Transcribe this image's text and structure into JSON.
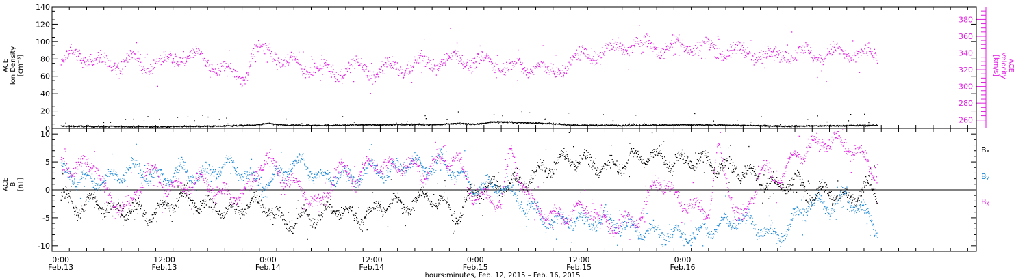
{
  "chart_data": [
    {
      "type": "scatter",
      "panel": "top",
      "left_ylabel": [
        "ACE",
        "Ion Density",
        "[cm⁻³]"
      ],
      "right_ylabel": [
        "ACE",
        "Velocity",
        "[km/s]"
      ],
      "ylim_left": [
        0,
        140
      ],
      "ylim_right": [
        250,
        395
      ],
      "left_ticks": [
        "0",
        "20",
        "40",
        "60",
        "80",
        "100",
        "120",
        "140"
      ],
      "right_ticks": [
        "260",
        "280",
        "300",
        "320",
        "340",
        "360",
        "380"
      ],
      "series": [
        {
          "name": "",
          "axis": "left",
          "color": "#000000",
          "shape": "density",
          "anchors": [
            [
              0,
              3
            ],
            [
              6,
              2.5
            ],
            [
              12,
              2.5
            ],
            [
              18,
              3
            ],
            [
              22,
              4
            ],
            [
              24,
              6
            ],
            [
              26,
              4
            ],
            [
              32,
              4
            ],
            [
              36,
              4.5
            ],
            [
              40,
              5
            ],
            [
              44,
              5
            ],
            [
              46,
              6
            ],
            [
              48,
              5
            ],
            [
              50,
              8
            ],
            [
              54,
              7
            ],
            [
              60,
              4
            ],
            [
              66,
              4
            ],
            [
              72,
              4.5
            ],
            [
              78,
              4
            ],
            [
              84,
              3
            ],
            [
              90,
              3.5
            ],
            [
              94.5,
              4
            ]
          ]
        },
        {
          "name": "",
          "axis": "right",
          "color": "#e01ee0",
          "shape": "velocity",
          "anchors": [
            [
              0,
              330
            ],
            [
              2,
              340
            ],
            [
              4,
              330
            ],
            [
              6,
              328
            ],
            [
              8,
              332
            ],
            [
              10,
              325
            ],
            [
              12,
              330
            ],
            [
              14,
              338
            ],
            [
              16,
              335
            ],
            [
              18,
              325
            ],
            [
              20,
              315
            ],
            [
              21,
              310
            ],
            [
              22.5,
              342
            ],
            [
              24,
              345
            ],
            [
              26,
              330
            ],
            [
              28,
              325
            ],
            [
              30,
              320
            ],
            [
              32,
              318
            ],
            [
              34,
              325
            ],
            [
              36,
              318
            ],
            [
              38,
              320
            ],
            [
              40,
              325
            ],
            [
              42,
              328
            ],
            [
              44,
              330
            ],
            [
              46,
              335
            ],
            [
              48,
              330
            ],
            [
              50,
              328
            ],
            [
              52,
              325
            ],
            [
              54,
              320
            ],
            [
              55,
              330
            ],
            [
              56,
              318
            ],
            [
              57,
              312
            ],
            [
              58,
              325
            ],
            [
              60,
              335
            ],
            [
              62,
              340
            ],
            [
              64,
              345
            ],
            [
              66,
              350
            ],
            [
              68,
              350
            ],
            [
              70,
              346
            ],
            [
              72,
              350
            ],
            [
              74,
              348
            ],
            [
              76,
              345
            ],
            [
              78,
              342
            ],
            [
              80,
              340
            ],
            [
              82,
              338
            ],
            [
              84,
              340
            ],
            [
              86,
              340
            ],
            [
              88,
              338
            ],
            [
              90,
              340
            ],
            [
              92,
              340
            ],
            [
              94.5,
              336
            ]
          ]
        }
      ]
    },
    {
      "type": "scatter",
      "panel": "bottom",
      "left_ylabel": [
        "ACE",
        "B",
        "[nT]"
      ],
      "ylim": [
        -11,
        11
      ],
      "ticks": [
        "-10",
        "-5",
        "0",
        "5",
        "10"
      ],
      "legend_placement": "right",
      "series": [
        {
          "name": "Bₓ",
          "color": "#000000",
          "anchors": [
            [
              0,
              -1
            ],
            [
              2,
              -3
            ],
            [
              4,
              -2
            ],
            [
              6,
              -4
            ],
            [
              8,
              -3
            ],
            [
              10,
              -4.5
            ],
            [
              12,
              -3
            ],
            [
              14,
              -1
            ],
            [
              16,
              -2.5
            ],
            [
              18,
              -3
            ],
            [
              20,
              -4
            ],
            [
              22,
              -2
            ],
            [
              24,
              -3
            ],
            [
              26,
              -6
            ],
            [
              28,
              -5
            ],
            [
              30,
              -4.5
            ],
            [
              32,
              -3
            ],
            [
              34,
              -5
            ],
            [
              36,
              -4
            ],
            [
              38,
              -2
            ],
            [
              40,
              -3
            ],
            [
              42,
              -1
            ],
            [
              44,
              -2
            ],
            [
              46,
              -5
            ],
            [
              47.5,
              -0.5
            ],
            [
              49,
              0.3
            ],
            [
              51,
              0.8
            ],
            [
              53,
              1
            ],
            [
              55,
              3
            ],
            [
              57,
              4.5
            ],
            [
              59,
              6
            ],
            [
              61,
              5
            ],
            [
              63,
              4
            ],
            [
              65,
              5
            ],
            [
              67,
              6
            ],
            [
              69,
              6
            ],
            [
              71,
              5
            ],
            [
              73,
              5.5
            ],
            [
              75,
              5
            ],
            [
              77,
              4
            ],
            [
              79,
              3.5
            ],
            [
              81,
              2
            ],
            [
              83,
              0.5
            ],
            [
              85,
              2
            ],
            [
              87,
              -1
            ],
            [
              89,
              0
            ],
            [
              91,
              -2
            ],
            [
              93,
              1
            ],
            [
              94.5,
              -1
            ]
          ]
        },
        {
          "name": "Bᵧ",
          "color": "#1c87d6",
          "anchors": [
            [
              0,
              3.5
            ],
            [
              2,
              2
            ],
            [
              4,
              1.5
            ],
            [
              6,
              2
            ],
            [
              8,
              4
            ],
            [
              10,
              3
            ],
            [
              12,
              2
            ],
            [
              14,
              3.5
            ],
            [
              16,
              2.5
            ],
            [
              18,
              4
            ],
            [
              20,
              4.5
            ],
            [
              22,
              2
            ],
            [
              24,
              1
            ],
            [
              26,
              4
            ],
            [
              28,
              5
            ],
            [
              30,
              2
            ],
            [
              32,
              3
            ],
            [
              34,
              2
            ],
            [
              36,
              4
            ],
            [
              38,
              3
            ],
            [
              40,
              5
            ],
            [
              42,
              4
            ],
            [
              44,
              5
            ],
            [
              46,
              3
            ],
            [
              47.5,
              0.5
            ],
            [
              49,
              0.5
            ],
            [
              51,
              1
            ],
            [
              53,
              -2
            ],
            [
              55,
              -4
            ],
            [
              57,
              -6
            ],
            [
              59,
              -5
            ],
            [
              61,
              -6
            ],
            [
              63,
              -5
            ],
            [
              65,
              -6.5
            ],
            [
              67,
              -7
            ],
            [
              69,
              -7.5
            ],
            [
              71,
              -8
            ],
            [
              73,
              -8
            ],
            [
              75,
              -7
            ],
            [
              77,
              -6
            ],
            [
              79,
              -5
            ],
            [
              81,
              -7
            ],
            [
              83,
              -8.5
            ],
            [
              85,
              -5
            ],
            [
              87,
              -2
            ],
            [
              89,
              -3
            ],
            [
              91,
              -1
            ],
            [
              93,
              -4
            ],
            [
              94.5,
              -7
            ]
          ]
        },
        {
          "name": "Bᵪ",
          "color": "#e01ee0",
          "anchors": [
            [
              0,
              4.5
            ],
            [
              2,
              4
            ],
            [
              4,
              5
            ],
            [
              5,
              0
            ],
            [
              6,
              -2
            ],
            [
              8,
              -3
            ],
            [
              10,
              4
            ],
            [
              12,
              1
            ],
            [
              14,
              0
            ],
            [
              16,
              2
            ],
            [
              18,
              0
            ],
            [
              20,
              -1
            ],
            [
              22,
              0
            ],
            [
              23,
              5
            ],
            [
              24,
              5.5
            ],
            [
              26,
              2
            ],
            [
              28,
              0
            ],
            [
              30,
              -3
            ],
            [
              32,
              4
            ],
            [
              34,
              2
            ],
            [
              36,
              5
            ],
            [
              38,
              4
            ],
            [
              40,
              5
            ],
            [
              42,
              3
            ],
            [
              44,
              5.5
            ],
            [
              46,
              5.5
            ],
            [
              47.5,
              -0.5
            ],
            [
              49,
              -1.5
            ],
            [
              51,
              -2
            ],
            [
              52,
              7
            ],
            [
              53,
              3
            ],
            [
              54,
              -1
            ],
            [
              55,
              -3
            ],
            [
              57,
              -5
            ],
            [
              59,
              -4
            ],
            [
              61,
              -3
            ],
            [
              63,
              -6
            ],
            [
              65,
              -6
            ],
            [
              67,
              -5
            ],
            [
              69,
              2
            ],
            [
              71,
              -1
            ],
            [
              73,
              -3
            ],
            [
              75,
              -4
            ],
            [
              76,
              8
            ],
            [
              77,
              2
            ],
            [
              78,
              -3
            ],
            [
              79,
              -6
            ],
            [
              81,
              4
            ],
            [
              83,
              2
            ],
            [
              85,
              6
            ],
            [
              87,
              8
            ],
            [
              89,
              9
            ],
            [
              91,
              8
            ],
            [
              93,
              6
            ],
            [
              94.5,
              2
            ]
          ]
        }
      ]
    }
  ],
  "x_axis": {
    "xlim": [
      -1,
      106
    ],
    "ticks": [
      {
        "hour": 0,
        "time": "0:00",
        "date": "Feb.13"
      },
      {
        "hour": 12,
        "time": "12:00",
        "date": "Feb.13"
      },
      {
        "hour": 24,
        "time": "0:00",
        "date": "Feb.14"
      },
      {
        "hour": 36,
        "time": "12:00",
        "date": "Feb.14"
      },
      {
        "hour": 48,
        "time": "0:00",
        "date": "Feb.15"
      },
      {
        "hour": 60,
        "time": "12:00",
        "date": "Feb.15"
      },
      {
        "hour": 72,
        "time": "0:00",
        "date": "Feb.16"
      }
    ],
    "label": "hours:minutes, Feb. 12, 2015 – Feb. 16, 2015"
  }
}
